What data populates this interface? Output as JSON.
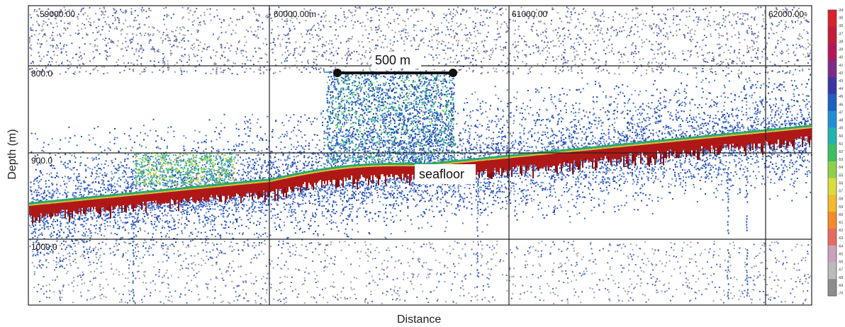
{
  "figure": {
    "x_label": "Distance",
    "y_label": "Depth (m)",
    "distance_ticks": [
      "59000.00",
      "60000.00m",
      "61000.00",
      "62000.00"
    ],
    "depth_ticks": [
      "800.0",
      "900.0",
      "1000.0"
    ],
    "scale_bar_label": "500 m",
    "seafloor_label": "seafloor",
    "colorbar_ticks": [
      "-34",
      "-35",
      "-36",
      "-37",
      "-38",
      "-39",
      "-40",
      "-41",
      "-42",
      "-43",
      "-44",
      "-45",
      "-46",
      "-47",
      "-48",
      "-49",
      "-50",
      "-51",
      "-52",
      "-53",
      "-54",
      "-55",
      "-56",
      "-57",
      "-58",
      "-59",
      "-60",
      "-61",
      "-62",
      "-63",
      "-64",
      "-65",
      "-66",
      "-67",
      "-68",
      "-69",
      "-70"
    ],
    "colorbar_colors": [
      "#d8232a",
      "#c41b3a",
      "#b0185a",
      "#7e2a86",
      "#3a35a0",
      "#1e5fbf",
      "#1f8fd4",
      "#22b3b0",
      "#3cbf5e",
      "#8fd04b",
      "#d9dd3a",
      "#f5b82e",
      "#f28a2a",
      "#e86a5f",
      "#c9a1bf",
      "#bbbbbb",
      "#8c8c8c"
    ]
  }
}
